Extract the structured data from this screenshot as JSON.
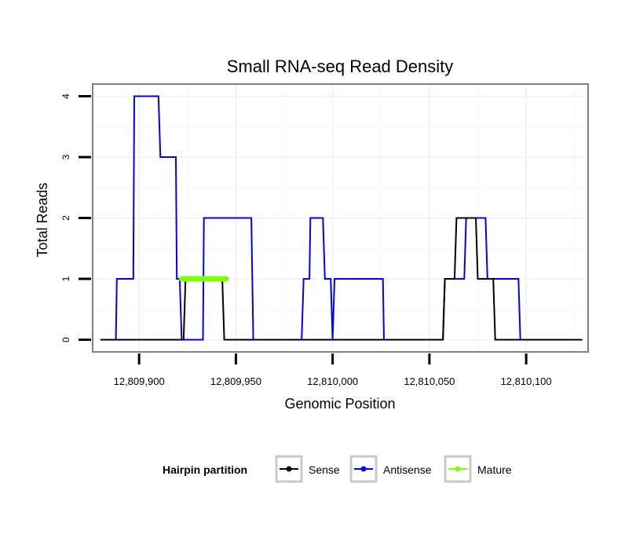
{
  "chart_data": {
    "type": "line",
    "title": "Small RNA-seq Read Density",
    "xlabel": "Genomic Position",
    "ylabel": "Total Reads",
    "xlim": [
      12809876,
      12810132
    ],
    "ylim": [
      -0.2,
      4.2
    ],
    "x_ticks": [
      12809900,
      12809950,
      12810000,
      12810050,
      12810100
    ],
    "x_tick_labels": [
      "12,809,900",
      "12,809,950",
      "12,810,000",
      "12,810,050",
      "12,810,100"
    ],
    "y_ticks": [
      0,
      1,
      2,
      3,
      4
    ],
    "y_tick_labels": [
      "0",
      "1",
      "2",
      "3",
      "4"
    ],
    "grid": true,
    "legend": {
      "title": "Hairpin partition",
      "position": "bottom",
      "entries": [
        "Sense",
        "Antisense",
        "Mature"
      ]
    },
    "series": [
      {
        "name": "Antisense",
        "color": "#0000ff",
        "points": [
          [
            12809880,
            0
          ],
          [
            12809888,
            0
          ],
          [
            12809888.5,
            1
          ],
          [
            12809897,
            1
          ],
          [
            12809897.5,
            4
          ],
          [
            12809910,
            4
          ],
          [
            12809911,
            3
          ],
          [
            12809919,
            3
          ],
          [
            12809919.5,
            1
          ],
          [
            12809921,
            1
          ],
          [
            12809922,
            0
          ],
          [
            12809933,
            0
          ],
          [
            12809933.5,
            2
          ],
          [
            12809958,
            2
          ],
          [
            12809959,
            0
          ],
          [
            12809984,
            0
          ],
          [
            12809985,
            1
          ],
          [
            12809988,
            1
          ],
          [
            12809988.5,
            2
          ],
          [
            12809995,
            2
          ],
          [
            12809996,
            1
          ],
          [
            12809999,
            1
          ],
          [
            12810000,
            0
          ],
          [
            12810001,
            1
          ],
          [
            12810026,
            1
          ],
          [
            12810026.5,
            0
          ],
          [
            12810057,
            0
          ],
          [
            12810058,
            1
          ],
          [
            12810068,
            1
          ],
          [
            12810069,
            2
          ],
          [
            12810079,
            2
          ],
          [
            12810080,
            1
          ],
          [
            12810096,
            1
          ],
          [
            12810097,
            0
          ],
          [
            12810129,
            0
          ]
        ]
      },
      {
        "name": "Sense",
        "color": "#000000",
        "points": [
          [
            12809880,
            0
          ],
          [
            12809923,
            0
          ],
          [
            12809924,
            1
          ],
          [
            12809943,
            1
          ],
          [
            12809944,
            0
          ],
          [
            12810057,
            0
          ],
          [
            12810058,
            1
          ],
          [
            12810063,
            1
          ],
          [
            12810064,
            2
          ],
          [
            12810074,
            2
          ],
          [
            12810075,
            1
          ],
          [
            12810083,
            1
          ],
          [
            12810084,
            0
          ],
          [
            12810129,
            0
          ]
        ]
      },
      {
        "name": "Mature",
        "color": "#7fff00",
        "points": [
          [
            12809922,
            1
          ],
          [
            12809945,
            1
          ]
        ]
      }
    ]
  }
}
